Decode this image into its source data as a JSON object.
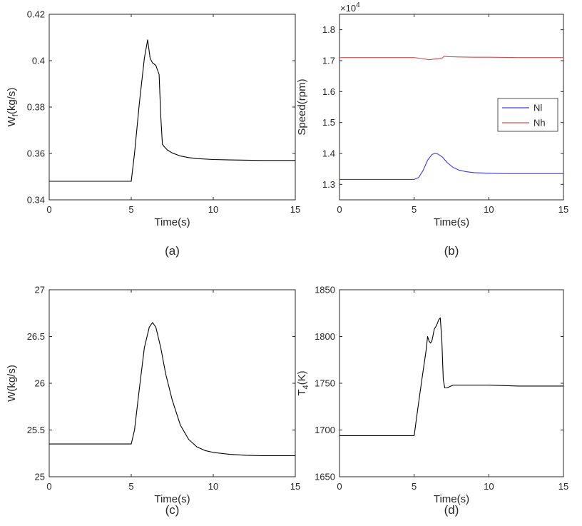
{
  "chart_data": [
    {
      "type": "line",
      "panel": "a",
      "caption": "(a)",
      "xlabel": "Time(s)",
      "ylabel": "W",
      "ylabel_sub": "f",
      "ylabel_unit": "(kg/s)",
      "xlim": [
        0,
        15
      ],
      "ylim": [
        0.34,
        0.42
      ],
      "xticks": [
        0,
        5,
        10,
        15
      ],
      "yticks": [
        0.34,
        0.36,
        0.38,
        0.4,
        0.42
      ],
      "ytick_labels": [
        "0.34",
        "0.36",
        "0.38",
        "0.4",
        "0.42"
      ],
      "exponent": "",
      "legend": null,
      "series": [
        {
          "name": "",
          "color": "#000000",
          "x": [
            0,
            5.0,
            5.2,
            5.5,
            5.8,
            6.0,
            6.15,
            6.3,
            6.5,
            6.6,
            6.7,
            6.8,
            6.9,
            7.0,
            7.2,
            7.5,
            8.0,
            8.5,
            9.0,
            10.0,
            11.0,
            12.0,
            13.0,
            14.0,
            15.0
          ],
          "y": [
            0.348,
            0.348,
            0.36,
            0.382,
            0.401,
            0.409,
            0.401,
            0.399,
            0.398,
            0.396,
            0.394,
            0.376,
            0.364,
            0.363,
            0.3615,
            0.3602,
            0.3589,
            0.3582,
            0.3578,
            0.3574,
            0.3572,
            0.3571,
            0.357,
            0.357,
            0.357
          ]
        }
      ]
    },
    {
      "type": "line",
      "panel": "b",
      "caption": "(b)",
      "xlabel": "Time(s)",
      "ylabel": "Speed(rpm)",
      "ylabel_sub": "",
      "ylabel_unit": "",
      "xlim": [
        0,
        15
      ],
      "ylim": [
        1.25,
        1.85
      ],
      "xticks": [
        0,
        5,
        10,
        15
      ],
      "yticks": [
        1.3,
        1.4,
        1.5,
        1.6,
        1.7,
        1.8
      ],
      "ytick_labels": [
        "1.3",
        "1.4",
        "1.5",
        "1.6",
        "1.7",
        "1.8"
      ],
      "exponent": "4",
      "legend": "center-right",
      "series": [
        {
          "name": "Nl",
          "color": "#3a3ae0",
          "x": [
            0,
            5.0,
            5.3,
            5.6,
            5.9,
            6.2,
            6.4,
            6.6,
            6.9,
            7.2,
            7.6,
            8.0,
            8.5,
            9.0,
            10.0,
            11.0,
            12.0,
            13.0,
            14.0,
            15.0
          ],
          "y": [
            1.316,
            1.316,
            1.322,
            1.345,
            1.378,
            1.397,
            1.4,
            1.398,
            1.388,
            1.371,
            1.355,
            1.346,
            1.341,
            1.338,
            1.336,
            1.335,
            1.335,
            1.335,
            1.335,
            1.335
          ]
        },
        {
          "name": "Nh",
          "color": "#d05050",
          "x": [
            0,
            5.0,
            5.5,
            6.0,
            6.3,
            6.6,
            6.9,
            7.0,
            7.3,
            8.0,
            9.0,
            10.0,
            12.0,
            15.0
          ],
          "y": [
            1.71,
            1.71,
            1.707,
            1.703,
            1.705,
            1.706,
            1.709,
            1.714,
            1.713,
            1.712,
            1.711,
            1.711,
            1.71,
            1.71
          ]
        }
      ]
    },
    {
      "type": "line",
      "panel": "c",
      "caption": "(c)",
      "xlabel": "Time(s)",
      "ylabel": "W(kg/s)",
      "ylabel_sub": "",
      "ylabel_unit": "",
      "xlim": [
        0,
        15
      ],
      "ylim": [
        25,
        27
      ],
      "xticks": [
        0,
        5,
        10,
        15
      ],
      "yticks": [
        25,
        25.5,
        26,
        26.5,
        27
      ],
      "ytick_labels": [
        "25",
        "25.5",
        "26",
        "26.5",
        "27"
      ],
      "exponent": "",
      "legend": null,
      "series": [
        {
          "name": "",
          "color": "#000000",
          "x": [
            0,
            5.0,
            5.2,
            5.5,
            5.8,
            6.1,
            6.3,
            6.5,
            6.8,
            7.1,
            7.5,
            8.0,
            8.5,
            9.0,
            9.5,
            10.0,
            11.0,
            12.0,
            13.0,
            14.0,
            15.0
          ],
          "y": [
            25.35,
            25.35,
            25.5,
            25.95,
            26.38,
            26.6,
            26.65,
            26.6,
            26.38,
            26.1,
            25.82,
            25.55,
            25.4,
            25.32,
            25.28,
            25.26,
            25.24,
            25.23,
            25.225,
            25.225,
            25.225
          ]
        }
      ]
    },
    {
      "type": "line",
      "panel": "d",
      "caption": "(d)",
      "xlabel": "Time(s)",
      "ylabel": "T",
      "ylabel_sub": "4",
      "ylabel_unit": "(K)",
      "xlim": [
        0,
        15
      ],
      "ylim": [
        1650,
        1850
      ],
      "xticks": [
        0,
        5,
        10,
        15
      ],
      "yticks": [
        1650,
        1700,
        1750,
        1800,
        1850
      ],
      "ytick_labels": [
        "1650",
        "1700",
        "1750",
        "1800",
        "1850"
      ],
      "exponent": "",
      "legend": null,
      "series": [
        {
          "name": "",
          "color": "#000000",
          "x": [
            0,
            5.0,
            5.2,
            5.5,
            5.8,
            5.9,
            6.0,
            6.1,
            6.2,
            6.35,
            6.5,
            6.65,
            6.75,
            6.85,
            6.95,
            7.05,
            7.2,
            7.6,
            8.0,
            9.0,
            10.0,
            12.0,
            15.0
          ],
          "y": [
            1694,
            1694,
            1718,
            1752,
            1785,
            1800,
            1795,
            1793,
            1796,
            1808,
            1812,
            1818,
            1820,
            1797,
            1754,
            1745,
            1745,
            1748,
            1748,
            1748,
            1748,
            1747,
            1747
          ]
        }
      ]
    }
  ]
}
